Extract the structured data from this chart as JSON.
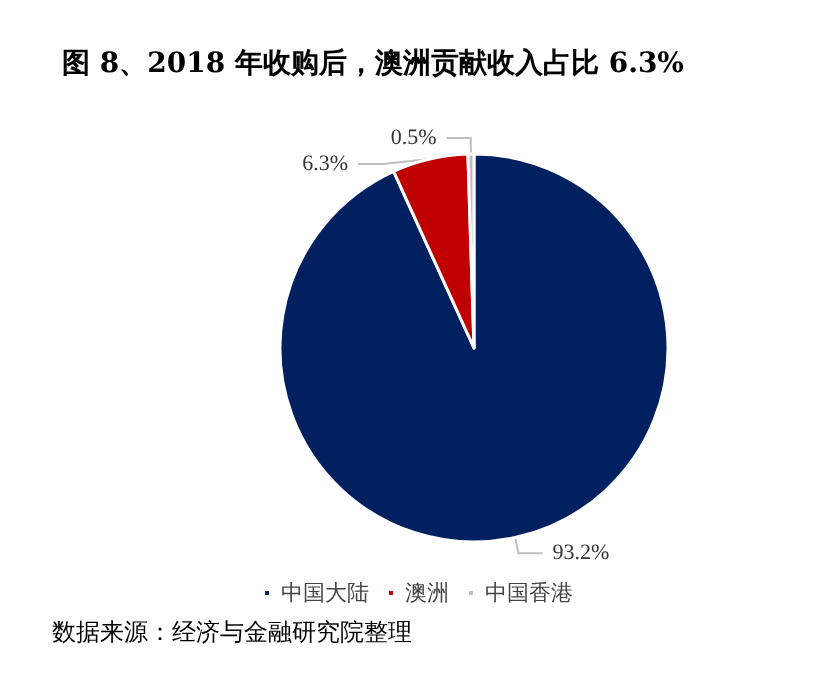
{
  "chart_data": {
    "type": "pie",
    "title": "图 8、2018 年收购后，澳洲贡献收入占比 6.3%",
    "categories": [
      "中国大陆",
      "澳洲",
      "中国香港"
    ],
    "values": [
      93.2,
      6.3,
      0.5
    ],
    "colors": [
      "#002060",
      "#c00000",
      "#bfbfbf"
    ],
    "value_labels": [
      "93.2%",
      "6.3%",
      "0.5%"
    ],
    "legend": "bottom",
    "annotations": [
      "数据来源：经济与金融研究院整理"
    ]
  }
}
